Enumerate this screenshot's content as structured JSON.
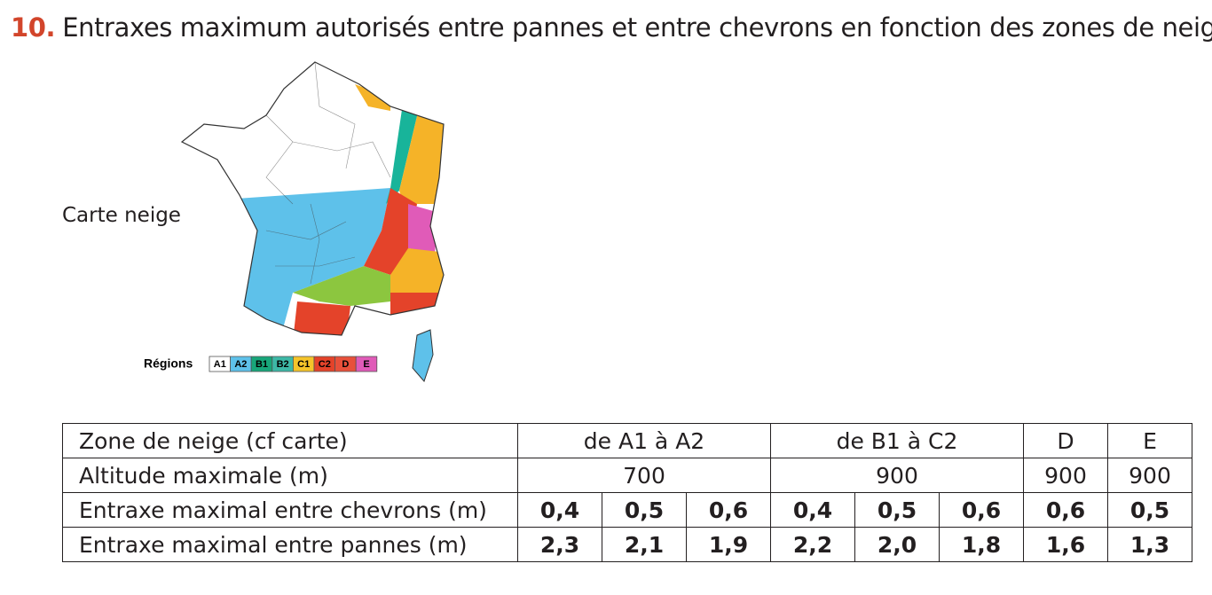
{
  "heading": {
    "number": "10.",
    "title": "Entraxes maximum autorisés entre pannes et entre chevrons en fonction des zones de neige"
  },
  "map": {
    "label": "Carte neige",
    "legend_title": "Régions",
    "legend": [
      "A1",
      "A2",
      "B1",
      "B2",
      "C1",
      "C2",
      "D",
      "E"
    ]
  },
  "table": {
    "header": [
      "Zone de neige (cf carte)",
      "de A1 à A2",
      "de B1 à C2",
      "D",
      "E"
    ],
    "altitude": [
      "Altitude maximale (m)",
      700,
      900,
      900,
      900
    ],
    "chevrons": [
      "Entraxe maximal entre chevrons (m)",
      "0,4",
      "0,5",
      "0,6",
      "0,4",
      "0,5",
      "0,6",
      "0,6",
      "0,5"
    ],
    "pannes": [
      "Entraxe maximal entre pannes (m)",
      "2,3",
      "2,1",
      "1,9",
      "2,2",
      "2,0",
      "1,8",
      "1,6",
      "1,3"
    ]
  }
}
